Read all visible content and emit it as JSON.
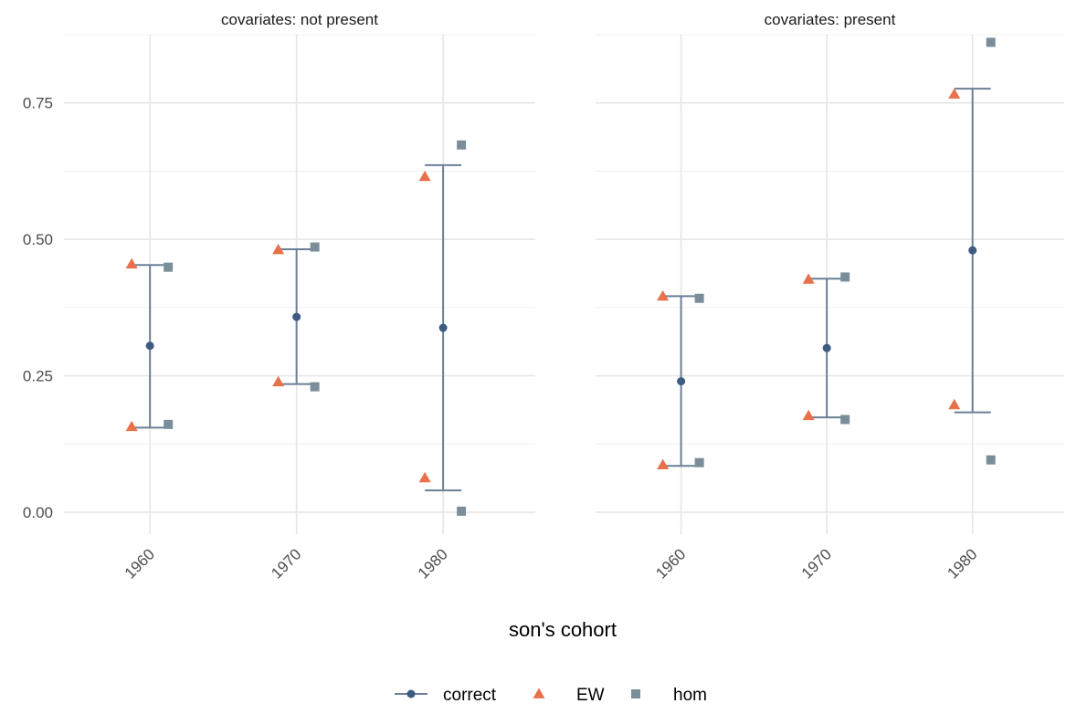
{
  "chart_data": {
    "type": "scatter",
    "xlabel": "son's cohort",
    "ylabel": "",
    "ylim": [
      -0.04,
      0.875
    ],
    "y_ticks": [
      0.0,
      0.25,
      0.5,
      0.75
    ],
    "y_tick_labels": [
      "0.00",
      "0.25",
      "0.50",
      "0.75"
    ],
    "x_categories": [
      "1960",
      "1970",
      "1980"
    ],
    "grid": true,
    "legend_position": "bottom",
    "legend": [
      {
        "name": "correct",
        "color": "#3d5a80",
        "shape": "circle"
      },
      {
        "name": "EW",
        "color": "#e8704a",
        "shape": "triangle"
      },
      {
        "name": "hom",
        "color": "#7a8e9a",
        "shape": "square"
      }
    ],
    "panels": [
      {
        "title": "covariates: not present",
        "correct": [
          0.305,
          0.358,
          0.338
        ],
        "ci_low": [
          0.155,
          0.235,
          0.04
        ],
        "ci_high": [
          0.453,
          0.482,
          0.636
        ],
        "EW": [
          [
            0.455,
            0.157
          ],
          [
            0.481,
            0.239
          ],
          [
            0.615,
            0.063
          ]
        ],
        "hom": [
          [
            0.449,
            0.161
          ],
          [
            0.486,
            0.23
          ],
          [
            0.673,
            0.002
          ]
        ]
      },
      {
        "title": "covariates: present",
        "correct": [
          0.24,
          0.301,
          0.48
        ],
        "ci_low": [
          0.085,
          0.174,
          0.183
        ],
        "ci_high": [
          0.396,
          0.428,
          0.776
        ],
        "EW": [
          [
            0.396,
            0.087
          ],
          [
            0.427,
            0.177
          ],
          [
            0.766,
            0.197
          ]
        ],
        "hom": [
          [
            0.392,
            0.091
          ],
          [
            0.431,
            0.17
          ],
          [
            0.861,
            0.096
          ]
        ]
      }
    ]
  }
}
